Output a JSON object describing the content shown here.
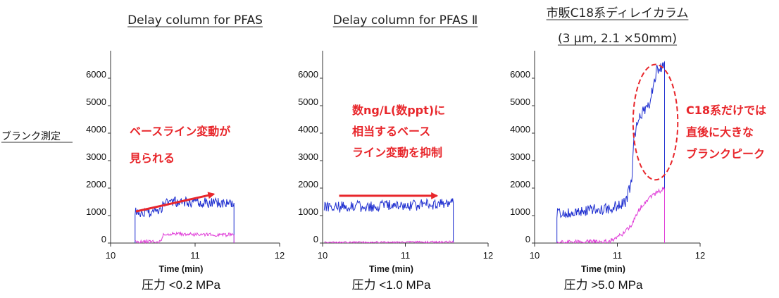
{
  "side_label": "ブランク測定",
  "colors": {
    "blue": "#1f2fd0",
    "magenta": "#e03cd8",
    "red": "#e8262b",
    "axis": "#333333"
  },
  "chart_data": [
    {
      "type": "line",
      "title_lines": [
        "Delay column for PFAS"
      ],
      "xlabel": "Time (min)",
      "condition": "圧力 <0.2 MPa",
      "xlim": [
        10,
        12
      ],
      "ylim": [
        0,
        7000
      ],
      "x_ticks": [
        "10",
        "11",
        "12"
      ],
      "y_ticks": [
        "0",
        "1000",
        "2000",
        "3000",
        "4000",
        "5000",
        "6000"
      ],
      "annotation_lines": [
        "ベースライン変動が",
        "見られる"
      ],
      "arrow": {
        "from": [
          10.3,
          1150
        ],
        "to": [
          11.22,
          1780
        ]
      },
      "series": [
        {
          "color": "blue",
          "x0": 10.29,
          "x1": 11.46,
          "n": 150,
          "profile": [
            [
              10.29,
              1100
            ],
            [
              10.6,
              1150
            ],
            [
              10.63,
              1500
            ],
            [
              11.46,
              1450
            ]
          ],
          "noise": 380,
          "seed": 3,
          "drop_start": true,
          "drop_end": true
        },
        {
          "color": "magenta",
          "x0": 10.29,
          "x1": 11.46,
          "n": 150,
          "profile": [
            [
              10.29,
              40
            ],
            [
              10.6,
              60
            ],
            [
              10.63,
              330
            ],
            [
              11.46,
              300
            ]
          ],
          "noise": 130,
          "seed": 11,
          "drop_start": false,
          "drop_end": true
        }
      ]
    },
    {
      "type": "line",
      "title_lines": [
        "Delay column for PFAS Ⅱ"
      ],
      "xlabel": "Time (min)",
      "condition": "圧力 <1.0 MPa",
      "xlim": [
        10,
        12
      ],
      "ylim": [
        0,
        7000
      ],
      "x_ticks": [
        "10",
        "11",
        "12"
      ],
      "y_ticks": [
        "0",
        "1000",
        "2000",
        "3000",
        "4000",
        "5000",
        "6000"
      ],
      "annotation_lines": [
        "数ng/L(数ppt)に",
        "相当するベース",
        "ライン変動を抑制"
      ],
      "arrow": {
        "from": [
          10.2,
          1720
        ],
        "to": [
          11.38,
          1720
        ]
      },
      "series": [
        {
          "color": "blue",
          "x0": 10.02,
          "x1": 11.58,
          "n": 190,
          "profile": [
            [
              10.02,
              1300
            ],
            [
              11.58,
              1420
            ]
          ],
          "noise": 420,
          "seed": 5,
          "drop_start": false,
          "drop_end": true
        },
        {
          "color": "magenta",
          "x0": 10.02,
          "x1": 11.58,
          "n": 190,
          "profile": [
            [
              10.02,
              20
            ],
            [
              11.58,
              40
            ]
          ],
          "noise": 70,
          "seed": 17,
          "drop_start": false,
          "drop_end": true
        }
      ]
    },
    {
      "type": "line",
      "title_lines": [
        "市販C18系ディレイカラム",
        "(3 μm, 2.1 ×50mm)"
      ],
      "xlabel": "Time (min)",
      "condition": "圧力 >5.0 MPa",
      "xlim": [
        10,
        12
      ],
      "ylim": [
        0,
        7000
      ],
      "x_ticks": [
        "10",
        "11",
        "12"
      ],
      "y_ticks": [
        "0",
        "1000",
        "2000",
        "3000",
        "4000",
        "5000",
        "6000"
      ],
      "annotation_lines": [
        "C18系だけでは",
        "直後に大きな",
        "ブランクピーク"
      ],
      "ellipse": {
        "cx": 11.46,
        "cy": 4400,
        "rx": 0.27,
        "ry": 2100
      },
      "series": [
        {
          "color": "blue",
          "x0": 10.27,
          "x1": 11.57,
          "n": 170,
          "profile": [
            [
              10.27,
              1100
            ],
            [
              10.9,
              1250
            ],
            [
              11.1,
              1500
            ],
            [
              11.18,
              2300
            ],
            [
              11.2,
              3900
            ],
            [
              11.28,
              4700
            ],
            [
              11.38,
              5000
            ],
            [
              11.48,
              6300
            ],
            [
              11.57,
              6400
            ]
          ],
          "noise": 420,
          "seed": 9,
          "drop_start": true,
          "drop_end": true
        },
        {
          "color": "magenta",
          "x0": 10.27,
          "x1": 11.57,
          "n": 170,
          "profile": [
            [
              10.27,
              20
            ],
            [
              10.9,
              60
            ],
            [
              11.05,
              300
            ],
            [
              11.18,
              700
            ],
            [
              11.28,
              1300
            ],
            [
              11.4,
              1700
            ],
            [
              11.57,
              2000
            ]
          ],
          "noise": 160,
          "seed": 23,
          "drop_start": false,
          "drop_end": true
        }
      ]
    }
  ]
}
